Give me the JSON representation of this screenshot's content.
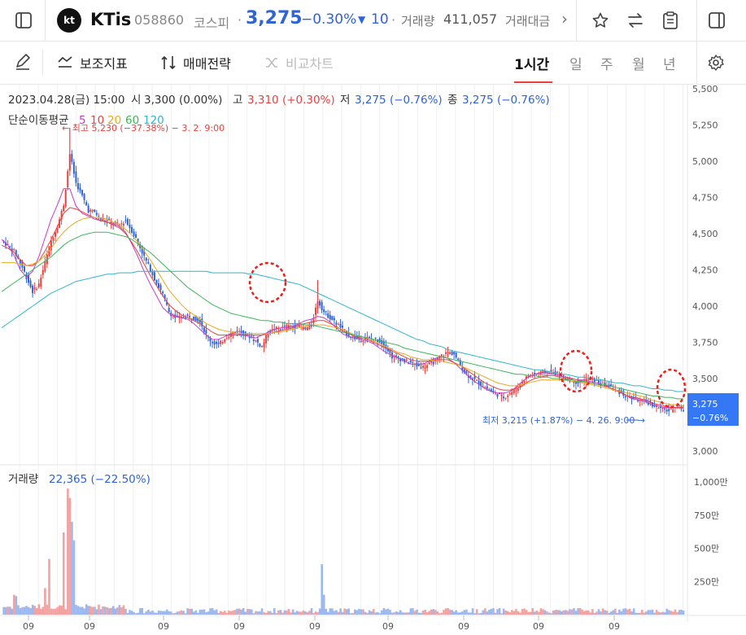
{
  "header": {
    "logo_text": "kt",
    "stock_name": "KTis",
    "stock_code": "058860",
    "market": "코스피",
    "price": "3,275",
    "change_pct": "−0.30%",
    "change_arrow": "▼",
    "change_abs": "10",
    "volume_label": "거래량",
    "volume_value": "411,057",
    "trade_amount_label": "거래대금",
    "more_chevron": "›"
  },
  "toolbar": {
    "indicator_label": "보조지표",
    "strategy_label": "매매전략",
    "compare_label": "비교차트",
    "periods": [
      "1시간",
      "일",
      "주",
      "월",
      "년"
    ],
    "active_period": "1시간"
  },
  "info": {
    "date": "2023.04.28(금) 15:00",
    "open_label": "시",
    "open_value": "3,300 (0.00%)",
    "high_label": "고",
    "high_value": "3,310 (+0.30%)",
    "low_label": "저",
    "low_value": "3,275 (−0.76%)",
    "close_label": "종",
    "close_value": "3,275 (−0.76%)",
    "ma_label": "단순이동평균",
    "ma_periods": [
      "5",
      "10",
      "20",
      "60",
      "120"
    ],
    "max_annotation": "← 최고 5,230 (−37.38%) − 3. 2. 9:00",
    "min_annotation": "최저 3,215 (+1.87%) − 4. 26. 9:00 →",
    "volume_label": "거래량",
    "volume_value": "22,365 (−22.50%)"
  },
  "price_tag": {
    "price": "3,275",
    "pct": "−0.76%"
  },
  "colors": {
    "up": "#e8413e",
    "down": "#2f63d6",
    "ma5": "#c53cc9",
    "ma10": "#e8413e",
    "ma20": "#e8a91d",
    "ma60": "#3cb55a",
    "ma120": "#2fb6c9",
    "tag_bg": "#3478f6"
  },
  "chart_data": {
    "type": "candlestick",
    "price_axis": {
      "min": 3000,
      "max": 5500,
      "ticks": [
        "5,500",
        "5,250",
        "5,000",
        "4,750",
        "4,500",
        "4,250",
        "4,000",
        "3,750",
        "3,500",
        "3,250",
        "3,000"
      ]
    },
    "volume_axis": {
      "ticks": [
        "1,000만",
        "750만",
        "500만",
        "250만"
      ]
    },
    "x_tick_labels": [
      "09",
      "09",
      "09",
      "09",
      "09",
      "09",
      "09",
      "09",
      "09"
    ],
    "close_path": [
      4450,
      4420,
      4380,
      4300,
      4200,
      4100,
      4150,
      4300,
      4450,
      4550,
      4700,
      5050,
      4850,
      4760,
      4660,
      4650,
      4600,
      4590,
      4570,
      4560,
      4590,
      4520,
      4440,
      4340,
      4250,
      4160,
      4080,
      3960,
      3920,
      3920,
      3930,
      3920,
      3900,
      3800,
      3750,
      3730,
      3780,
      3810,
      3830,
      3810,
      3790,
      3760,
      3720,
      3820,
      3840,
      3850,
      3860,
      3860,
      3860,
      3840,
      3870,
      4040,
      3960,
      3920,
      3880,
      3840,
      3800,
      3780,
      3770,
      3780,
      3770,
      3760,
      3720,
      3650,
      3640,
      3620,
      3610,
      3590,
      3580,
      3600,
      3620,
      3660,
      3680,
      3670,
      3590,
      3530,
      3500,
      3470,
      3440,
      3410,
      3390,
      3370,
      3400,
      3420,
      3480,
      3520,
      3530,
      3540,
      3550,
      3540,
      3530,
      3500,
      3490,
      3470,
      3490,
      3500,
      3480,
      3460,
      3450,
      3420,
      3400,
      3370,
      3360,
      3350,
      3340,
      3320,
      3300,
      3280,
      3280,
      3330,
      3275
    ],
    "series": [
      {
        "name": "5",
        "values": [
          4460,
          4420,
          4350,
          4250,
          4200,
          4240,
          4340,
          4470,
          4600,
          4700,
          4810,
          4810,
          4690,
          4640,
          4620,
          4600,
          4590,
          4580,
          4570,
          4550,
          4510,
          4430,
          4340,
          4240,
          4150,
          4070,
          3990,
          3950,
          3930,
          3920,
          3910,
          3880,
          3840,
          3800,
          3770,
          3770,
          3790,
          3810,
          3810,
          3800,
          3790,
          3780,
          3800,
          3820,
          3840,
          3850,
          3850,
          3860,
          3880,
          3900,
          3910,
          3930,
          3920,
          3890,
          3850,
          3810,
          3790,
          3780,
          3770,
          3760,
          3740,
          3710,
          3680,
          3660,
          3640,
          3620,
          3600,
          3600,
          3600,
          3620,
          3640,
          3650,
          3640,
          3610,
          3570,
          3530,
          3490,
          3460,
          3430,
          3410,
          3400,
          3400,
          3410,
          3440,
          3480,
          3510,
          3530,
          3540,
          3540,
          3530,
          3520,
          3510,
          3500,
          3490,
          3490,
          3480,
          3470,
          3460,
          3440,
          3420,
          3400,
          3380,
          3360,
          3350,
          3340,
          3320,
          3310,
          3300,
          3300,
          3300,
          3300
        ]
      },
      {
        "name": "10",
        "values": [
          4420,
          4400,
          4370,
          4320,
          4280,
          4280,
          4310,
          4380,
          4460,
          4550,
          4640,
          4680,
          4670,
          4650,
          4630,
          4610,
          4590,
          4580,
          4560,
          4540,
          4500,
          4440,
          4370,
          4290,
          4210,
          4140,
          4070,
          4010,
          3970,
          3940,
          3920,
          3900,
          3880,
          3850,
          3820,
          3800,
          3800,
          3800,
          3800,
          3800,
          3800,
          3800,
          3800,
          3810,
          3820,
          3830,
          3840,
          3850,
          3870,
          3880,
          3890,
          3900,
          3900,
          3880,
          3860,
          3830,
          3810,
          3790,
          3780,
          3770,
          3750,
          3730,
          3710,
          3690,
          3670,
          3650,
          3630,
          3620,
          3620,
          3620,
          3630,
          3630,
          3630,
          3610,
          3590,
          3560,
          3530,
          3500,
          3470,
          3450,
          3430,
          3420,
          3420,
          3430,
          3450,
          3480,
          3500,
          3510,
          3520,
          3520,
          3510,
          3500,
          3500,
          3490,
          3480,
          3470,
          3460,
          3450,
          3440,
          3420,
          3400,
          3380,
          3370,
          3360,
          3350,
          3330,
          3320,
          3310,
          3300,
          3300,
          3300
        ]
      },
      {
        "name": "20",
        "values": [
          4300,
          4300,
          4300,
          4290,
          4280,
          4290,
          4310,
          4350,
          4400,
          4460,
          4510,
          4550,
          4580,
          4600,
          4610,
          4610,
          4610,
          4600,
          4580,
          4560,
          4530,
          4490,
          4440,
          4380,
          4320,
          4250,
          4180,
          4110,
          4060,
          4010,
          3970,
          3940,
          3910,
          3880,
          3860,
          3840,
          3830,
          3820,
          3810,
          3810,
          3810,
          3810,
          3810,
          3810,
          3820,
          3820,
          3830,
          3840,
          3850,
          3860,
          3870,
          3870,
          3870,
          3860,
          3850,
          3840,
          3820,
          3800,
          3790,
          3780,
          3760,
          3740,
          3720,
          3700,
          3680,
          3670,
          3650,
          3640,
          3630,
          3630,
          3620,
          3620,
          3610,
          3600,
          3590,
          3570,
          3550,
          3530,
          3510,
          3490,
          3470,
          3460,
          3450,
          3450,
          3460,
          3470,
          3480,
          3490,
          3490,
          3490,
          3490,
          3490,
          3480,
          3480,
          3470,
          3460,
          3450,
          3440,
          3430,
          3420,
          3410,
          3400,
          3390,
          3380,
          3370,
          3350,
          3340,
          3330,
          3320,
          3320,
          3310
        ]
      },
      {
        "name": "60",
        "values": [
          4100,
          4130,
          4160,
          4190,
          4220,
          4250,
          4280,
          4310,
          4340,
          4380,
          4420,
          4450,
          4470,
          4490,
          4500,
          4510,
          4510,
          4510,
          4500,
          4490,
          4480,
          4460,
          4430,
          4400,
          4370,
          4330,
          4290,
          4250,
          4210,
          4170,
          4130,
          4100,
          4070,
          4040,
          4010,
          3990,
          3970,
          3950,
          3940,
          3930,
          3920,
          3910,
          3900,
          3900,
          3890,
          3890,
          3880,
          3880,
          3880,
          3870,
          3870,
          3860,
          3850,
          3840,
          3830,
          3820,
          3810,
          3800,
          3790,
          3780,
          3770,
          3760,
          3750,
          3740,
          3730,
          3710,
          3700,
          3690,
          3680,
          3670,
          3660,
          3650,
          3640,
          3630,
          3620,
          3610,
          3600,
          3590,
          3580,
          3570,
          3560,
          3550,
          3540,
          3530,
          3530,
          3520,
          3520,
          3510,
          3510,
          3500,
          3500,
          3490,
          3490,
          3480,
          3480,
          3470,
          3460,
          3460,
          3450,
          3440,
          3430,
          3420,
          3410,
          3400,
          3390,
          3380,
          3380,
          3370,
          3370,
          3360,
          3360
        ]
      },
      {
        "name": "120",
        "values": [
          3850,
          3880,
          3910,
          3940,
          3970,
          4000,
          4030,
          4060,
          4090,
          4110,
          4130,
          4150,
          4170,
          4180,
          4190,
          4200,
          4210,
          4220,
          4220,
          4230,
          4230,
          4230,
          4240,
          4240,
          4240,
          4240,
          4240,
          4240,
          4240,
          4240,
          4240,
          4240,
          4240,
          4240,
          4230,
          4230,
          4230,
          4230,
          4230,
          4230,
          4220,
          4220,
          4210,
          4200,
          4190,
          4180,
          4170,
          4160,
          4150,
          4130,
          4110,
          4090,
          4070,
          4050,
          4030,
          4010,
          3990,
          3970,
          3950,
          3930,
          3910,
          3890,
          3870,
          3850,
          3830,
          3810,
          3790,
          3770,
          3760,
          3740,
          3730,
          3720,
          3700,
          3690,
          3680,
          3670,
          3660,
          3650,
          3640,
          3630,
          3620,
          3610,
          3600,
          3590,
          3580,
          3570,
          3560,
          3560,
          3550,
          3540,
          3530,
          3530,
          3520,
          3510,
          3510,
          3500,
          3490,
          3490,
          3480,
          3470,
          3470,
          3460,
          3450,
          3450,
          3440,
          3430,
          3430,
          3420,
          3420,
          3410,
          3410
        ]
      }
    ]
  }
}
